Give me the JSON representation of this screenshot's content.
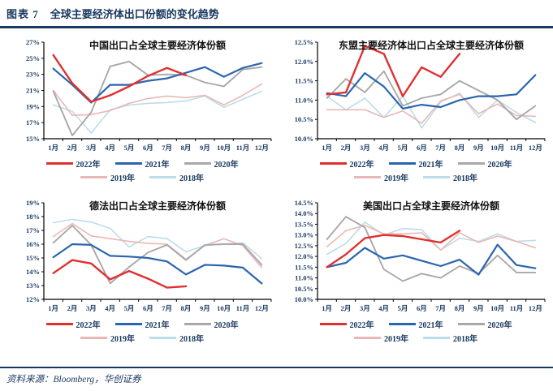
{
  "header": {
    "label": "图表 7",
    "title": "全球主要经济体出口份额的变化趋势"
  },
  "footer": {
    "source": "资料来源：Bloomberg，华创证券"
  },
  "colors": {
    "accent_navy": "#17375e",
    "axis_black": "#000000",
    "series_2022": "#e03030",
    "series_2021": "#2a65b0",
    "series_2020": "#a8a8a8",
    "series_2019": "#e9b7b5",
    "series_2018": "#bcdde9"
  },
  "chart_data": [
    {
      "id": "china",
      "type": "line",
      "title": "中国出口占全球主要经济体份额",
      "categories": [
        "1月",
        "2月",
        "3月",
        "4月",
        "5月",
        "6月",
        "7月",
        "8月",
        "9月",
        "10月",
        "11月",
        "12月"
      ],
      "ylim": [
        15,
        27
      ],
      "yticklabels": [
        "15%",
        "17%",
        "19%",
        "21%",
        "23%",
        "25%",
        "27%"
      ],
      "legend_rows": [
        [
          "2022年",
          "2021年",
          "2020年"
        ],
        [
          "2019年",
          "2018年"
        ]
      ],
      "series": [
        {
          "name": "2022年",
          "color": "#e03030",
          "values": [
            25.4,
            21.9,
            19.6,
            20.4,
            21.5,
            22.8,
            23.8,
            22.9
          ]
        },
        {
          "name": "2021年",
          "color": "#2a65b0",
          "values": [
            23.7,
            21.7,
            19.5,
            21.7,
            21.7,
            22.2,
            22.5,
            23.2,
            23.9,
            22.7,
            23.8,
            24.4
          ]
        },
        {
          "name": "2020年",
          "color": "#a8a8a8",
          "values": [
            20.9,
            15.4,
            18.3,
            24.0,
            24.6,
            22.9,
            23.0,
            22.9,
            22.0,
            21.5,
            23.6,
            23.9
          ]
        },
        {
          "name": "2019年",
          "color": "#e9b7b5",
          "values": [
            21.0,
            17.9,
            18.0,
            18.5,
            19.4,
            20.0,
            20.3,
            20.1,
            20.4,
            19.2,
            20.4,
            21.8
          ]
        },
        {
          "name": "2018年",
          "color": "#bcdde9",
          "values": [
            19.2,
            18.4,
            15.7,
            18.6,
            19.2,
            19.4,
            19.5,
            19.7,
            20.3,
            18.9,
            19.9,
            20.9
          ]
        }
      ]
    },
    {
      "id": "asean",
      "type": "line",
      "title": "东盟主要经济体出口占全球主要经济体份额",
      "categories": [
        "1月",
        "2月",
        "3月",
        "4月",
        "5月",
        "6月",
        "7月",
        "8月",
        "9月",
        "10月",
        "11月",
        "12月"
      ],
      "ylim": [
        10.0,
        12.5
      ],
      "yticklabels": [
        "10.0%",
        "10.5%",
        "11.0%",
        "11.5%",
        "12.0%",
        "12.5%"
      ],
      "legend_rows": [
        [
          "2022年",
          "2021年",
          "2020年"
        ],
        [
          "2019年",
          "2018年"
        ]
      ],
      "series": [
        {
          "name": "2022年",
          "color": "#e03030",
          "values": [
            11.15,
            11.2,
            12.4,
            12.2,
            11.1,
            11.85,
            11.6,
            12.2
          ]
        },
        {
          "name": "2021年",
          "color": "#2a65b0",
          "values": [
            11.18,
            11.1,
            11.7,
            11.35,
            10.78,
            10.88,
            10.82,
            11.0,
            11.1,
            11.1,
            11.15,
            11.65
          ]
        },
        {
          "name": "2020年",
          "color": "#a8a8a8",
          "values": [
            11.05,
            11.55,
            11.2,
            11.75,
            10.85,
            11.05,
            11.15,
            11.5,
            11.25,
            11.0,
            10.5,
            10.85
          ]
        },
        {
          "name": "2019年",
          "color": "#e9b7b5",
          "values": [
            10.75,
            10.75,
            10.75,
            10.55,
            10.72,
            10.4,
            10.98,
            11.15,
            10.65,
            10.9,
            10.6,
            10.58
          ]
        },
        {
          "name": "2018年",
          "color": "#bcdde9",
          "values": [
            11.1,
            10.75,
            11.05,
            10.55,
            11.1,
            10.28,
            10.95,
            11.18,
            10.55,
            11.0,
            10.68,
            10.42
          ]
        }
      ]
    },
    {
      "id": "germany_france",
      "type": "line",
      "title": "德法出口占全球主要经济体份额",
      "categories": [
        "1月",
        "2月",
        "3月",
        "4月",
        "5月",
        "6月",
        "7月",
        "8月",
        "9月",
        "10月",
        "11月",
        "12月"
      ],
      "ylim": [
        12,
        19
      ],
      "yticklabels": [
        "12%",
        "13%",
        "14%",
        "15%",
        "16%",
        "17%",
        "18%",
        "19%"
      ],
      "legend_rows": [
        [
          "2022年",
          "2021年",
          "2020年"
        ],
        [
          "2019年",
          "2018年"
        ]
      ],
      "series": [
        {
          "name": "2022年",
          "color": "#e03030",
          "values": [
            13.9,
            14.85,
            14.6,
            13.45,
            14.05,
            13.5,
            12.85,
            12.95
          ]
        },
        {
          "name": "2021年",
          "color": "#2a65b0",
          "values": [
            15.05,
            16.0,
            15.95,
            15.15,
            15.1,
            15.0,
            14.75,
            13.8,
            14.5,
            14.45,
            14.3,
            13.15
          ]
        },
        {
          "name": "2020年",
          "color": "#a8a8a8",
          "values": [
            16.1,
            17.35,
            15.95,
            13.15,
            14.35,
            15.4,
            15.95,
            14.85,
            15.95,
            16.0,
            16.0,
            14.5
          ]
        },
        {
          "name": "2019年",
          "color": "#e9b7b5",
          "values": [
            16.55,
            17.5,
            16.6,
            16.4,
            16.2,
            16.05,
            16.0,
            14.9,
            15.9,
            16.4,
            15.9,
            14.3
          ]
        },
        {
          "name": "2018年",
          "color": "#bcdde9",
          "values": [
            17.55,
            17.8,
            17.6,
            17.15,
            15.8,
            16.55,
            16.4,
            15.45,
            15.9,
            16.0,
            16.1,
            14.95
          ]
        }
      ]
    },
    {
      "id": "us",
      "type": "line",
      "title": "美国出口占全球主要经济体份额",
      "categories": [
        "1月",
        "2月",
        "3月",
        "4月",
        "5月",
        "6月",
        "7月",
        "8月",
        "9月",
        "10月",
        "11月",
        "12月"
      ],
      "ylim": [
        10.0,
        14.5
      ],
      "yticklabels": [
        "10.0%",
        "10.5%",
        "11.0%",
        "11.5%",
        "12.0%",
        "12.5%",
        "13.0%",
        "13.5%",
        "14.0%",
        "14.5%"
      ],
      "legend_rows": [
        [
          "2022年",
          "2021年",
          "2020年"
        ],
        [
          "2019年",
          "2018年"
        ]
      ],
      "series": [
        {
          "name": "2022年",
          "color": "#e03030",
          "values": [
            11.5,
            12.1,
            12.85,
            13.0,
            12.95,
            12.8,
            12.65,
            13.2
          ]
        },
        {
          "name": "2021年",
          "color": "#2a65b0",
          "values": [
            11.5,
            11.7,
            12.4,
            11.9,
            12.05,
            11.8,
            11.55,
            11.85,
            11.15,
            12.55,
            11.6,
            11.45
          ]
        },
        {
          "name": "2020年",
          "color": "#a8a8a8",
          "values": [
            12.8,
            13.85,
            13.35,
            11.4,
            10.85,
            11.2,
            11.0,
            11.55,
            11.2,
            12.05,
            11.25,
            11.25
          ]
        },
        {
          "name": "2019年",
          "color": "#e9b7b5",
          "values": [
            12.45,
            13.2,
            13.45,
            13.05,
            13.05,
            13.1,
            12.3,
            13.1,
            12.65,
            12.95,
            12.7,
            12.4
          ]
        },
        {
          "name": "2018年",
          "color": "#bcdde9",
          "values": [
            12.1,
            12.6,
            13.6,
            13.0,
            13.3,
            13.25,
            12.3,
            12.85,
            12.7,
            13.05,
            12.7,
            12.75
          ]
        }
      ]
    }
  ]
}
